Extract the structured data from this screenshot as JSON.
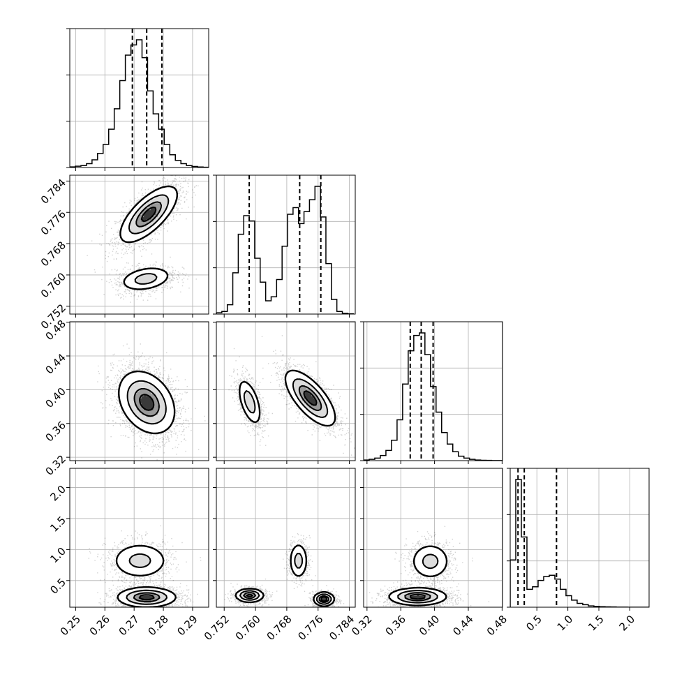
{
  "chart_data": {
    "type": "corner",
    "grid": true,
    "parameters": [
      {
        "range": [
          0.248,
          0.2955
        ],
        "ticks": [
          0.25,
          0.26,
          0.27,
          0.28,
          0.29
        ],
        "tick_labels": [
          "0.25",
          "0.26",
          "0.27",
          "0.28",
          "0.29"
        ],
        "quantiles": [
          0.2694,
          0.2743,
          0.2795
        ],
        "hist_bins": [
          0.248,
          0.2499,
          0.2518,
          0.2537,
          0.2556,
          0.2575,
          0.2594,
          0.2613,
          0.2632,
          0.2651,
          0.267,
          0.2689,
          0.2708,
          0.2727,
          0.2746,
          0.2765,
          0.2784,
          0.2803,
          0.2822,
          0.2841,
          0.286,
          0.2879,
          0.2898,
          0.2917,
          0.2936,
          0.2955
        ],
        "hist_counts": [
          0.005,
          0.01,
          0.015,
          0.03,
          0.06,
          0.11,
          0.18,
          0.3,
          0.46,
          0.68,
          0.88,
          0.96,
          1.0,
          0.86,
          0.6,
          0.42,
          0.3,
          0.18,
          0.1,
          0.055,
          0.03,
          0.015,
          0.008,
          0.004,
          0.002
        ]
      },
      {
        "range": [
          0.75,
          0.7855
        ],
        "ticks": [
          0.752,
          0.76,
          0.768,
          0.776,
          0.784
        ],
        "tick_labels": [
          "0.752",
          "0.760",
          "0.768",
          "0.776",
          "0.784"
        ],
        "quantiles": [
          0.7584,
          0.7713,
          0.7767
        ],
        "hist_bins": [
          0.75,
          0.7514,
          0.7528,
          0.7542,
          0.7556,
          0.757,
          0.7584,
          0.7598,
          0.7612,
          0.7626,
          0.764,
          0.7654,
          0.7668,
          0.7682,
          0.7696,
          0.771,
          0.7724,
          0.7738,
          0.7752,
          0.7766,
          0.778,
          0.7794,
          0.7808,
          0.7822,
          0.7836,
          0.785
        ],
        "hist_counts": [
          0.01,
          0.02,
          0.07,
          0.31,
          0.6,
          0.74,
          0.7,
          0.42,
          0.24,
          0.1,
          0.13,
          0.26,
          0.51,
          0.75,
          0.8,
          0.68,
          0.77,
          0.86,
          0.96,
          0.73,
          0.38,
          0.11,
          0.02,
          0.005,
          0.002
        ]
      },
      {
        "range": [
          0.316,
          0.4805
        ],
        "ticks": [
          0.32,
          0.36,
          0.4,
          0.44,
          0.48
        ],
        "tick_labels": [
          "0.32",
          "0.36",
          "0.40",
          "0.44",
          "0.48"
        ],
        "quantiles": [
          0.3712,
          0.3842,
          0.3983
        ],
        "hist_bins": [
          0.316,
          0.3226,
          0.3292,
          0.3358,
          0.3424,
          0.349,
          0.3556,
          0.3622,
          0.3688,
          0.3754,
          0.382,
          0.3886,
          0.3952,
          0.4018,
          0.4084,
          0.415,
          0.4216,
          0.4282,
          0.4348,
          0.4414,
          0.448,
          0.4546,
          0.4612,
          0.4678,
          0.4744,
          0.4805
        ],
        "hist_counts": [
          0.005,
          0.01,
          0.02,
          0.04,
          0.08,
          0.16,
          0.32,
          0.6,
          0.86,
          0.98,
          1.0,
          0.83,
          0.58,
          0.38,
          0.22,
          0.13,
          0.07,
          0.035,
          0.02,
          0.01,
          0.005,
          0.003,
          0.002,
          0.001,
          0.001
        ]
      },
      {
        "range": [
          0.07,
          2.31
        ],
        "ticks": [
          0.5,
          1.0,
          1.5,
          2.0
        ],
        "tick_labels": [
          "0.5",
          "1.0",
          "1.5",
          "2.0"
        ],
        "quantiles": [
          0.196,
          0.297,
          0.817
        ],
        "hist_bins": [
          0.07,
          0.16,
          0.25,
          0.34,
          0.43,
          0.52,
          0.61,
          0.7,
          0.79,
          0.88,
          0.97,
          1.06,
          1.15,
          1.24,
          1.33,
          1.42,
          1.51,
          1.6,
          1.69,
          1.78,
          1.87,
          1.96,
          2.05,
          2.14,
          2.23,
          2.31
        ],
        "hist_counts": [
          0.37,
          1.0,
          0.55,
          0.14,
          0.16,
          0.21,
          0.24,
          0.25,
          0.22,
          0.14,
          0.09,
          0.055,
          0.03,
          0.02,
          0.01,
          0.006,
          0.004,
          0.003,
          0.002,
          0.001,
          0.001,
          0.0,
          0.0,
          0.0,
          0.0
        ]
      }
    ],
    "pairs": [
      {
        "xi": 0,
        "yi": 1,
        "blobs": [
          {
            "center": [
              0.275,
              0.7755
            ],
            "sigma": [
              0.0049,
              0.0036
            ],
            "rho": 0.7,
            "weight": 1.0
          },
          {
            "center": [
              0.274,
              0.759
            ],
            "sigma": [
              0.0045,
              0.0016
            ],
            "rho": 0.3,
            "weight": 0.55
          }
        ]
      },
      {
        "xi": 0,
        "yi": 2,
        "blobs": [
          {
            "center": [
              0.2743,
              0.385
            ],
            "sigma": [
              0.0048,
              0.0185
            ],
            "rho": -0.3,
            "weight": 1.0
          }
        ]
      },
      {
        "xi": 1,
        "yi": 2,
        "blobs": [
          {
            "center": [
              0.7585,
              0.3855
            ],
            "sigma": [
              0.0015,
              0.014
            ],
            "rho": -0.55,
            "weight": 0.6
          },
          {
            "center": [
              0.774,
              0.39
            ],
            "sigma": [
              0.0032,
              0.0165
            ],
            "rho": -0.7,
            "weight": 1.0
          }
        ]
      },
      {
        "xi": 0,
        "yi": 3,
        "blobs": [
          {
            "center": [
              0.2743,
              0.23
            ],
            "sigma": [
              0.005,
              0.08
            ],
            "rho": 0.0,
            "weight": 1.0
          },
          {
            "center": [
              0.272,
              0.82
            ],
            "sigma": [
              0.005,
              0.15
            ],
            "rho": 0.0,
            "weight": 0.5
          }
        ]
      },
      {
        "xi": 1,
        "yi": 3,
        "blobs": [
          {
            "center": [
              0.7585,
              0.26
            ],
            "sigma": [
              0.0018,
              0.055
            ],
            "rho": 0.0,
            "weight": 0.9
          },
          {
            "center": [
              0.771,
              0.82
            ],
            "sigma": [
              0.0012,
              0.15
            ],
            "rho": 0.0,
            "weight": 0.5
          },
          {
            "center": [
              0.7775,
              0.2
            ],
            "sigma": [
              0.0013,
              0.055
            ],
            "rho": 0.0,
            "weight": 1.0
          }
        ]
      },
      {
        "xi": 2,
        "yi": 3,
        "blobs": [
          {
            "center": [
              0.38,
              0.24
            ],
            "sigma": [
              0.017,
              0.07
            ],
            "rho": 0.0,
            "weight": 1.0
          },
          {
            "center": [
              0.395,
              0.81
            ],
            "sigma": [
              0.012,
              0.15
            ],
            "rho": 0.0,
            "weight": 0.5
          }
        ]
      }
    ]
  }
}
